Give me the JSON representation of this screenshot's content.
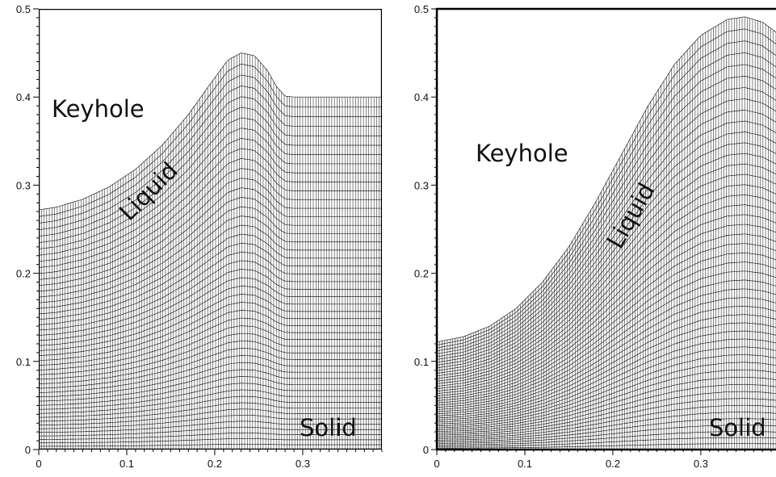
{
  "panels": [
    {
      "id": "left",
      "x_ticks": [
        "0",
        "0.1",
        "0.2",
        "0.3"
      ],
      "y_ticks": [
        "0",
        "0.1",
        "0.2",
        "0.3",
        "0.4",
        "0.5"
      ],
      "xlim": [
        0,
        0.39
      ],
      "ylim": [
        0,
        0.5
      ],
      "labels": {
        "keyhole": "Keyhole",
        "liquid": "Liquid",
        "solid": "Solid"
      },
      "surface_profile": [
        [
          0,
          0.272
        ],
        [
          0.02,
          0.275
        ],
        [
          0.05,
          0.284
        ],
        [
          0.08,
          0.298
        ],
        [
          0.11,
          0.318
        ],
        [
          0.14,
          0.345
        ],
        [
          0.17,
          0.38
        ],
        [
          0.195,
          0.415
        ],
        [
          0.215,
          0.442
        ],
        [
          0.23,
          0.45
        ],
        [
          0.245,
          0.447
        ],
        [
          0.26,
          0.43
        ],
        [
          0.27,
          0.412
        ],
        [
          0.28,
          0.401
        ],
        [
          0.29,
          0.4
        ],
        [
          0.39,
          0.4
        ]
      ]
    },
    {
      "id": "right",
      "x_ticks": [
        "0",
        "0.1",
        "0.2",
        "0.3"
      ],
      "y_ticks": [
        "0",
        "0.1",
        "0.2",
        "0.3",
        "0.4",
        "0.5"
      ],
      "xlim": [
        0,
        0.39
      ],
      "ylim": [
        0,
        0.5
      ],
      "labels": {
        "keyhole": "Keyhole",
        "liquid": "Liquid",
        "solid": "Solid"
      },
      "surface_profile": [
        [
          0,
          0.122
        ],
        [
          0.03,
          0.128
        ],
        [
          0.06,
          0.14
        ],
        [
          0.09,
          0.16
        ],
        [
          0.12,
          0.19
        ],
        [
          0.15,
          0.23
        ],
        [
          0.18,
          0.28
        ],
        [
          0.21,
          0.335
        ],
        [
          0.24,
          0.39
        ],
        [
          0.27,
          0.437
        ],
        [
          0.3,
          0.47
        ],
        [
          0.33,
          0.488
        ],
        [
          0.35,
          0.491
        ],
        [
          0.37,
          0.485
        ],
        [
          0.39,
          0.47
        ]
      ]
    }
  ]
}
